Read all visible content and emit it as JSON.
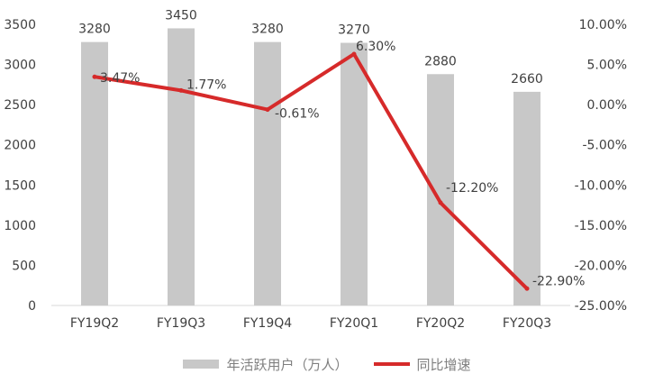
{
  "chart_data": {
    "type": "bar+line",
    "categories": [
      "FY19Q2",
      "FY19Q3",
      "FY19Q4",
      "FY20Q1",
      "FY20Q2",
      "FY20Q3"
    ],
    "series": [
      {
        "name": "年活跃用户（万人）",
        "type": "bar",
        "axis": "left",
        "values": [
          3280,
          3450,
          3280,
          3270,
          2880,
          2660
        ],
        "labels": [
          "3280",
          "3450",
          "3280",
          "3270",
          "2880",
          "2660"
        ],
        "color": "#c8c8c8"
      },
      {
        "name": "同比增速",
        "type": "line",
        "axis": "right",
        "values": [
          3.47,
          1.77,
          -0.61,
          6.3,
          -12.2,
          -22.9
        ],
        "labels": [
          "3.47%",
          "1.77%",
          "-0.61%",
          "6.30%",
          "-12.20%",
          "-22.90%"
        ],
        "color": "#d62a2a"
      }
    ],
    "y_left": {
      "range": [
        0,
        3500
      ],
      "ticks": [
        0,
        500,
        1000,
        1500,
        2000,
        2500,
        3000,
        3500
      ],
      "tick_labels": [
        "0",
        "500",
        "1000",
        "1500",
        "2000",
        "2500",
        "3000",
        "3500"
      ]
    },
    "y_right": {
      "range": [
        -25,
        10
      ],
      "ticks": [
        10,
        5,
        0,
        -5,
        -10,
        -15,
        -20,
        -25
      ],
      "tick_labels": [
        "10.00%",
        "5.00%",
        "0.00%",
        "-5.00%",
        "-10.00%",
        "-15.00%",
        "-20.00%",
        "-25.00%"
      ]
    },
    "grid": false,
    "legend": "bottom"
  }
}
